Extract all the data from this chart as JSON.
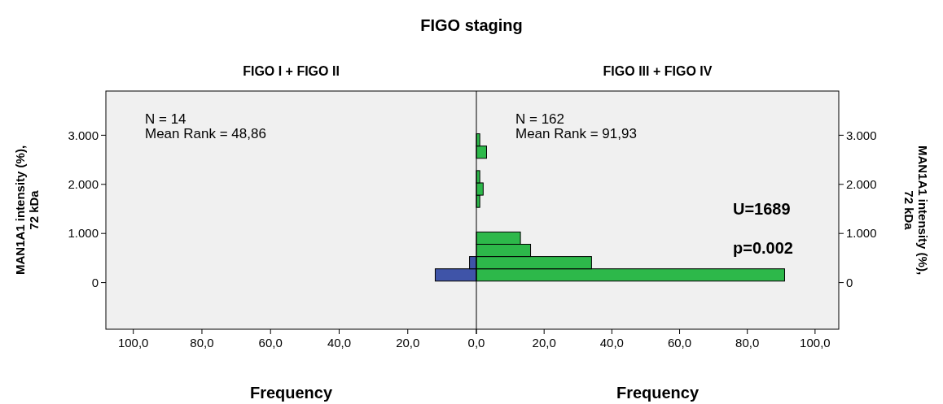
{
  "chart_data": [
    {
      "type": "histogram",
      "orientation": "horizontal",
      "title": "FIGO staging",
      "subtitle": "FIGO I + FIGO II",
      "xlabel": "Frequency",
      "ylabel": "MAN1A1 intensity (%), 72 kDa",
      "bins": [
        30,
        280,
        530,
        780,
        1030,
        1280,
        1530,
        1780,
        2030,
        2280,
        2530,
        2780,
        3030
      ],
      "values": [
        12,
        2,
        0,
        0,
        0,
        0,
        0,
        0,
        0,
        0,
        0,
        0
      ],
      "color": "#3f54a8",
      "xlim": [
        108,
        0
      ],
      "xticks": [
        {
          "value": 100,
          "label": "100,0"
        },
        {
          "value": 80,
          "label": "80,0"
        },
        {
          "value": 60,
          "label": "60,0"
        },
        {
          "value": 40,
          "label": "40,0"
        },
        {
          "value": 20,
          "label": "20,0"
        },
        {
          "value": 0,
          "label": null
        }
      ],
      "ylim": [
        -950,
        3900
      ],
      "yticks": [
        {
          "value": 0,
          "label": "0"
        },
        {
          "value": 1000,
          "label": "1.000"
        },
        {
          "value": 2000,
          "label": "2.000"
        },
        {
          "value": 3000,
          "label": "3.000"
        }
      ],
      "annotations": [
        "N = 14",
        "Mean Rank = 48,86"
      ]
    },
    {
      "type": "histogram",
      "orientation": "horizontal",
      "subtitle": "FIGO III + FIGO IV",
      "xlabel": "Frequency",
      "ylabel": "MAN1A1 intensity (%), 72 kDa",
      "bins": [
        30,
        280,
        530,
        780,
        1030,
        1280,
        1530,
        1780,
        2030,
        2280,
        2530,
        2780,
        3030
      ],
      "values": [
        91,
        34,
        16,
        13,
        0,
        0,
        1,
        2,
        1,
        0,
        3,
        1
      ],
      "color": "#2db84a",
      "xlim": [
        0,
        107
      ],
      "xticks": [
        {
          "value": 0,
          "label": "0,0"
        },
        {
          "value": 20,
          "label": "20,0"
        },
        {
          "value": 40,
          "label": "40,0"
        },
        {
          "value": 60,
          "label": "60,0"
        },
        {
          "value": 80,
          "label": "80,0"
        },
        {
          "value": 100,
          "label": "100,0"
        }
      ],
      "ylim": [
        -950,
        3900
      ],
      "yticks": [
        {
          "value": 0,
          "label": "0"
        },
        {
          "value": 1000,
          "label": "1.000"
        },
        {
          "value": 2000,
          "label": "2.000"
        },
        {
          "value": 3000,
          "label": "3.000"
        }
      ],
      "annotations": [
        "N = 162",
        "Mean Rank = 91,93",
        "U=1689",
        "p=0.002"
      ]
    }
  ]
}
